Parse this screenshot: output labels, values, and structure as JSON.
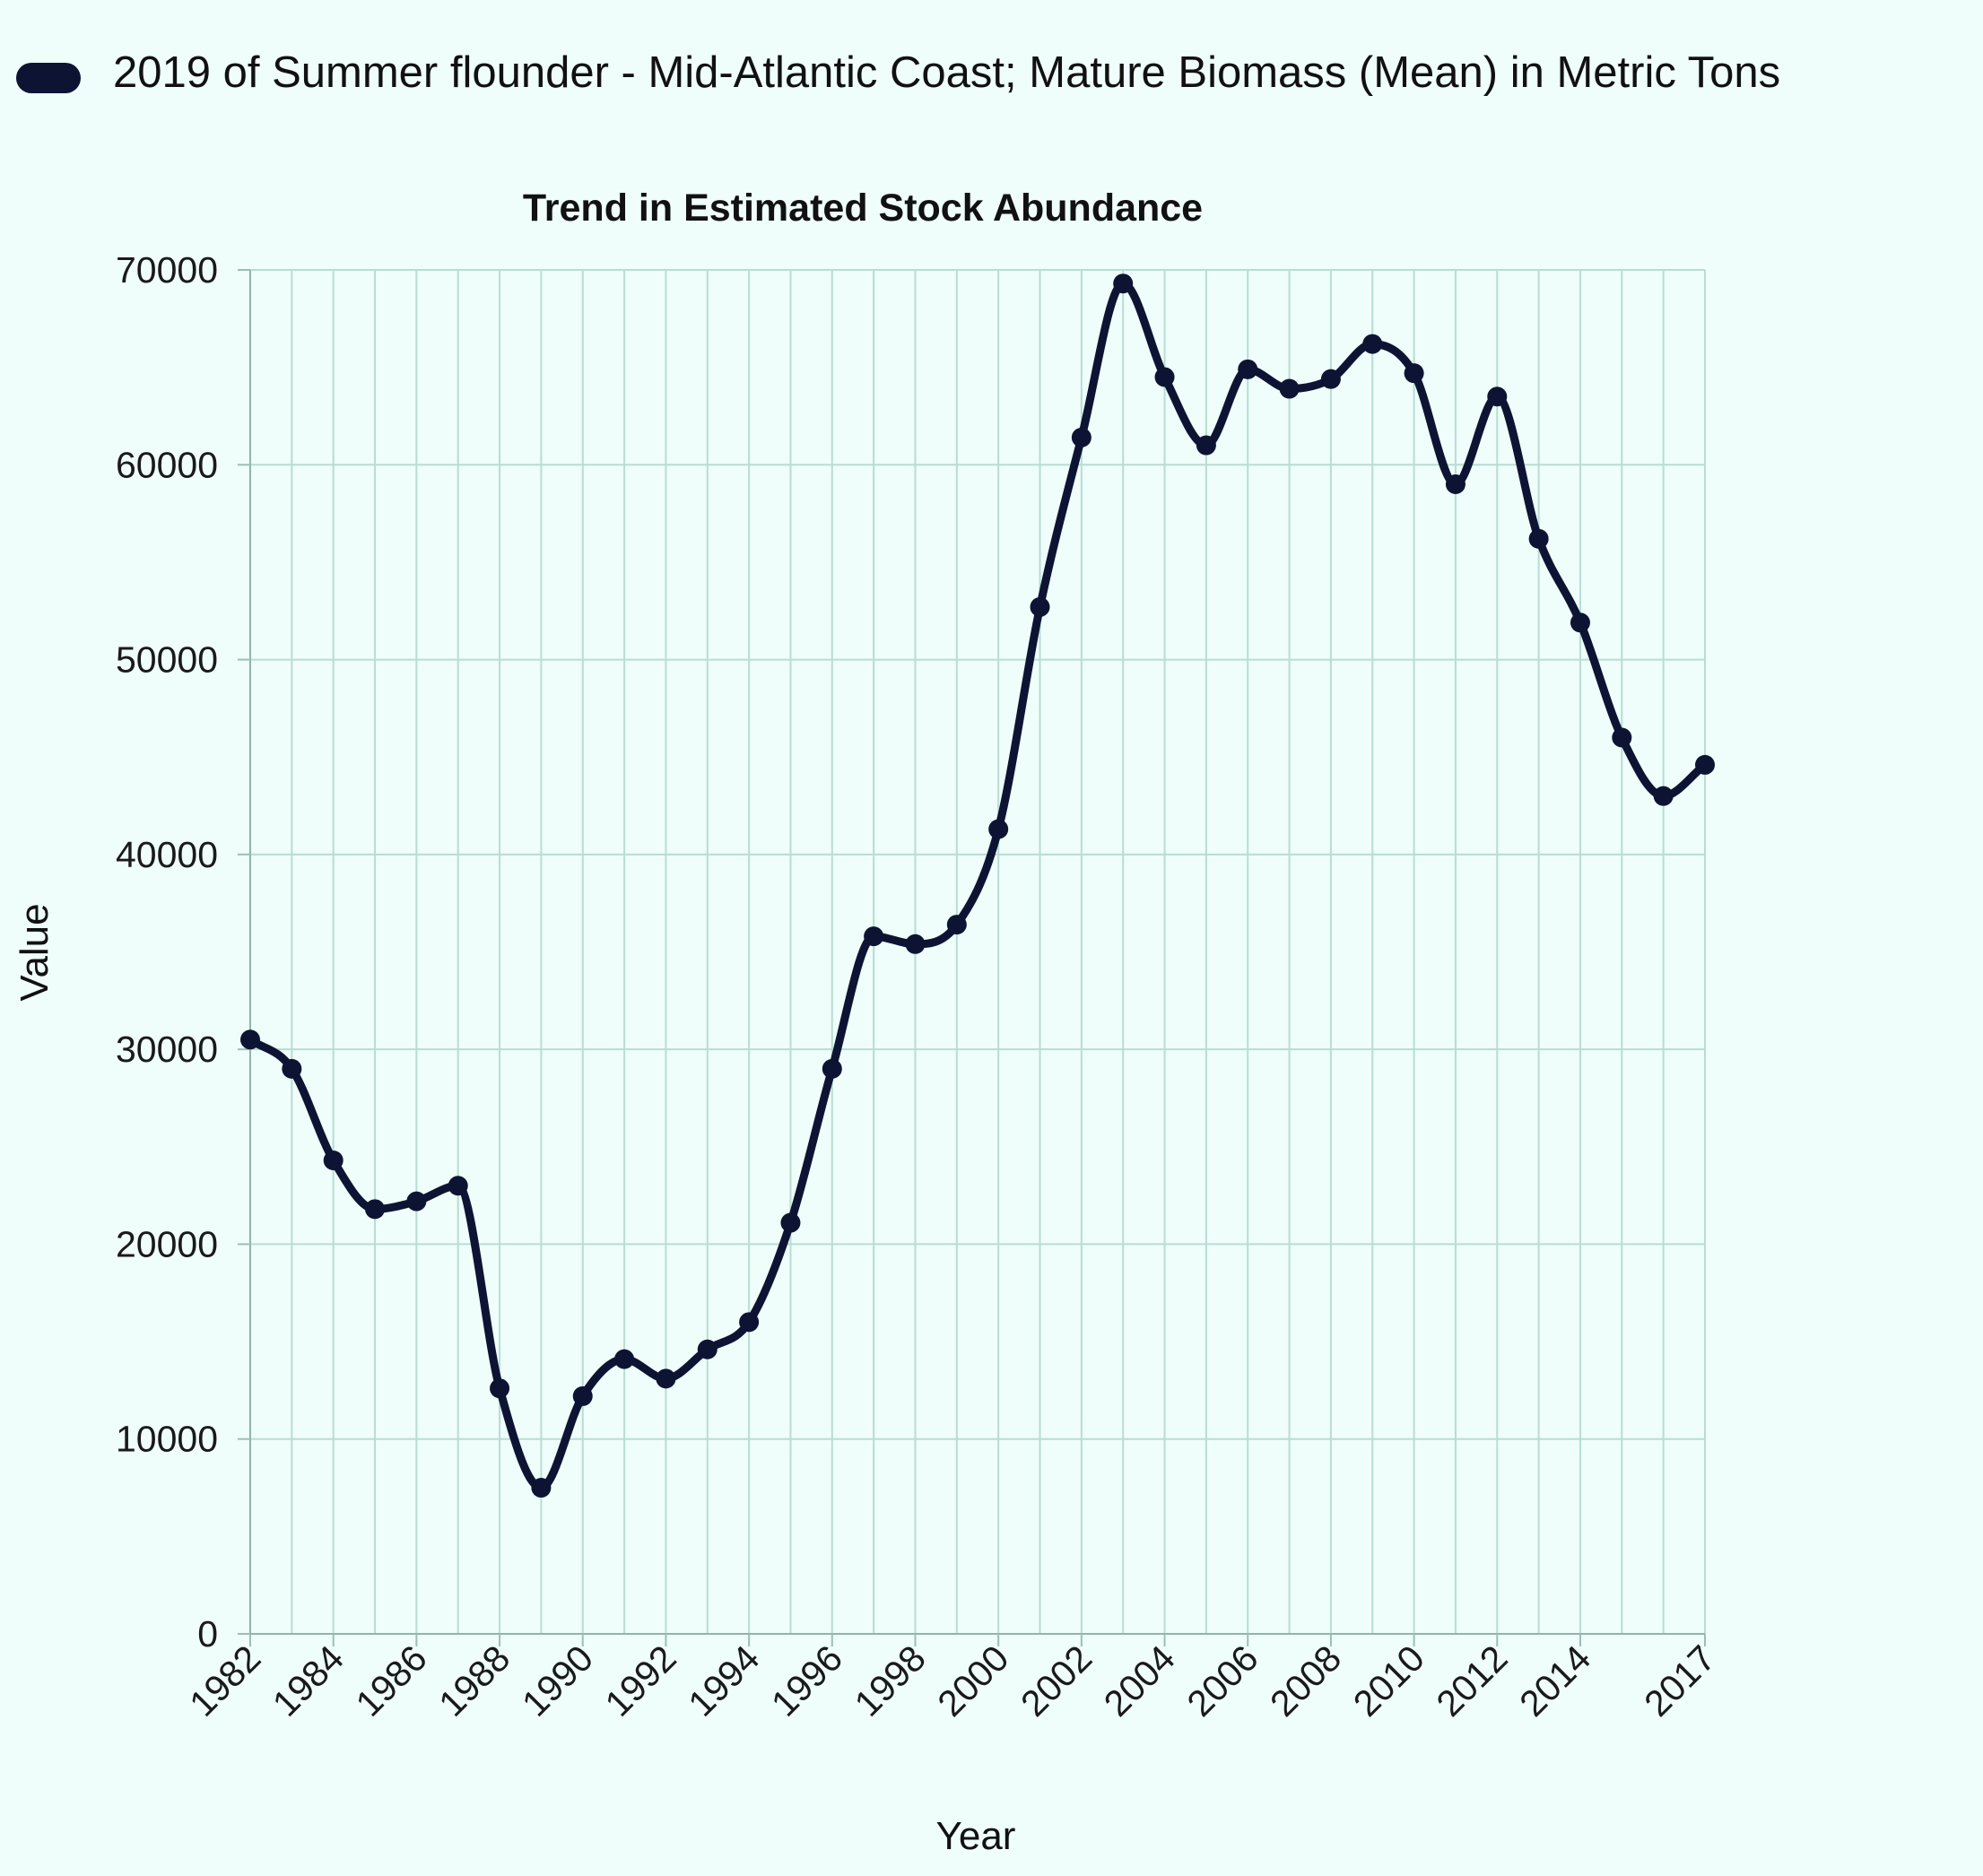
{
  "chart_data": {
    "type": "line",
    "title": "Trend in Estimated Stock Abundance",
    "xlabel": "Year",
    "ylabel": "Value",
    "legend_position": "top-left",
    "grid": true,
    "ylim": [
      0,
      70000
    ],
    "y_ticks": [
      "0",
      "10000",
      "20000",
      "30000",
      "40000",
      "50000",
      "60000",
      "70000"
    ],
    "x_tick_labels": [
      "1982",
      "1984",
      "1986",
      "1988",
      "1990",
      "1992",
      "1994",
      "1996",
      "1998",
      "2000",
      "2002",
      "2004",
      "2006",
      "2008",
      "2010",
      "2012",
      "2014",
      "2017"
    ],
    "x": [
      1982,
      1983,
      1984,
      1985,
      1986,
      1987,
      1988,
      1989,
      1990,
      1991,
      1992,
      1993,
      1994,
      1995,
      1996,
      1997,
      1998,
      1999,
      2000,
      2001,
      2002,
      2003,
      2004,
      2005,
      2006,
      2007,
      2008,
      2009,
      2010,
      2011,
      2012,
      2013,
      2014,
      2015,
      2016,
      2017
    ],
    "series": [
      {
        "name": "2019 of Summer flounder - Mid-Atlantic Coast; Mature Biomass (Mean) in Metric Tons",
        "color": "#0d1433",
        "values": [
          30500,
          29000,
          24300,
          21800,
          22200,
          23000,
          12600,
          7500,
          12200,
          14100,
          13100,
          14600,
          16000,
          21100,
          29000,
          35800,
          35400,
          36400,
          41300,
          52700,
          61400,
          69300,
          64500,
          61000,
          64900,
          63900,
          64400,
          66200,
          64700,
          59000,
          63500,
          56200,
          51900,
          46000,
          43000,
          44600
        ]
      }
    ]
  }
}
